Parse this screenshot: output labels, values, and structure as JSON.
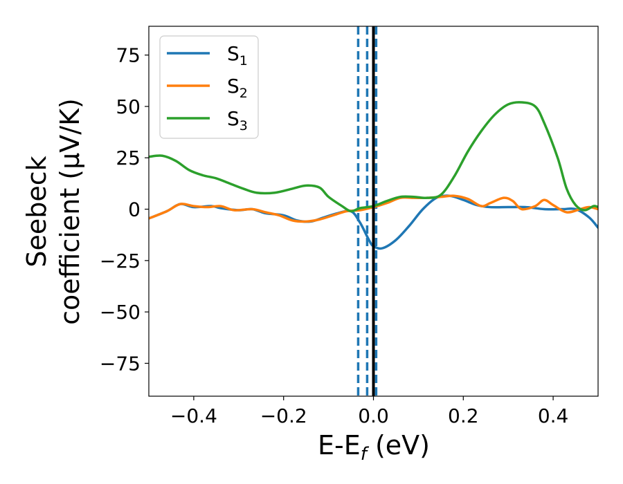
{
  "chart_data": {
    "type": "line",
    "title": "",
    "xlabel": {
      "main": "E-E",
      "sub": "f",
      "unit": " (eV)"
    },
    "ylabel": {
      "line1": "Seebeck",
      "line2": "coefficient  (μV/K)"
    },
    "xlim": [
      -0.5,
      0.5
    ],
    "ylim": [
      -91,
      89
    ],
    "xticks": [
      -0.4,
      -0.2,
      0.0,
      0.2,
      0.4
    ],
    "xtick_labels": [
      "−0.4",
      "−0.2",
      "0.0",
      "0.2",
      "0.4"
    ],
    "yticks": [
      75,
      50,
      25,
      0,
      -25,
      -50,
      -75
    ],
    "ytick_labels": [
      "75",
      "50",
      "25",
      "0",
      "−25",
      "−50",
      "−75"
    ],
    "grid": false,
    "legend_position": "top-left",
    "series": [
      {
        "name": "S1",
        "label_main": "S",
        "label_sub": "1",
        "color": "#1f77b4",
        "x": [
          -0.5,
          -0.46,
          -0.43,
          -0.4,
          -0.36,
          -0.34,
          -0.3,
          -0.27,
          -0.24,
          -0.2,
          -0.17,
          -0.14,
          -0.11,
          -0.08,
          -0.05,
          -0.03,
          -0.01,
          0.0,
          0.02,
          0.05,
          0.08,
          0.11,
          0.14,
          0.17,
          0.2,
          0.23,
          0.26,
          0.3,
          0.34,
          0.38,
          0.42,
          0.45,
          0.48,
          0.5
        ],
        "y": [
          -4.5,
          -1,
          2.5,
          1,
          1.5,
          0.5,
          -0.5,
          0,
          -2,
          -3,
          -5.5,
          -6,
          -4,
          -2,
          -1,
          -6.5,
          -15,
          -18,
          -19,
          -15,
          -8,
          0,
          5.5,
          6.5,
          4.5,
          2,
          1,
          1,
          1,
          0,
          0,
          0,
          -4,
          -9
        ]
      },
      {
        "name": "S2",
        "label_main": "S",
        "label_sub": "2",
        "color": "#ff7f0e",
        "x": [
          -0.5,
          -0.46,
          -0.43,
          -0.4,
          -0.37,
          -0.34,
          -0.31,
          -0.27,
          -0.24,
          -0.21,
          -0.18,
          -0.15,
          -0.12,
          -0.09,
          -0.06,
          -0.03,
          0.0,
          0.03,
          0.06,
          0.09,
          0.12,
          0.15,
          0.18,
          0.21,
          0.24,
          0.26,
          0.29,
          0.31,
          0.33,
          0.36,
          0.38,
          0.4,
          0.43,
          0.46,
          0.48,
          0.5
        ],
        "y": [
          -4.5,
          -1,
          2.5,
          1.5,
          1,
          1.5,
          -0.5,
          0,
          -1.5,
          -3,
          -5.5,
          -6,
          -5,
          -3,
          -1,
          -0.5,
          1,
          3,
          5.5,
          5.5,
          5.5,
          6,
          6.5,
          5,
          1.5,
          3,
          5.5,
          4,
          0,
          1.5,
          4.5,
          2,
          -1.5,
          0,
          1,
          0
        ]
      },
      {
        "name": "S3",
        "label_main": "S",
        "label_sub": "3",
        "color": "#2ca02c",
        "x": [
          -0.5,
          -0.47,
          -0.44,
          -0.41,
          -0.38,
          -0.35,
          -0.32,
          -0.29,
          -0.26,
          -0.22,
          -0.18,
          -0.15,
          -0.12,
          -0.1,
          -0.07,
          -0.05,
          -0.03,
          0.0,
          0.03,
          0.06,
          0.09,
          0.12,
          0.15,
          0.18,
          0.21,
          0.24,
          0.27,
          0.3,
          0.33,
          0.36,
          0.38,
          0.41,
          0.43,
          0.45,
          0.47,
          0.49,
          0.5
        ],
        "y": [
          25.5,
          26,
          23.5,
          19,
          16.5,
          15,
          12.5,
          10,
          8,
          8,
          10,
          11.5,
          10.5,
          6,
          1.5,
          -1,
          0.5,
          1.5,
          4,
          6,
          6,
          5.5,
          7,
          16,
          28,
          38,
          46,
          51,
          52,
          50,
          42,
          25,
          10,
          2,
          -0.5,
          1.5,
          1
        ]
      }
    ],
    "vlines": [
      {
        "x": -0.034,
        "style": "dashed",
        "color": "#1f77b4"
      },
      {
        "x": -0.014,
        "style": "dashed",
        "color": "#1f77b4"
      },
      {
        "x": 0.006,
        "style": "dashed",
        "color": "#1f77b4"
      },
      {
        "x": 0.0,
        "style": "solid",
        "color": "#000000"
      }
    ]
  }
}
